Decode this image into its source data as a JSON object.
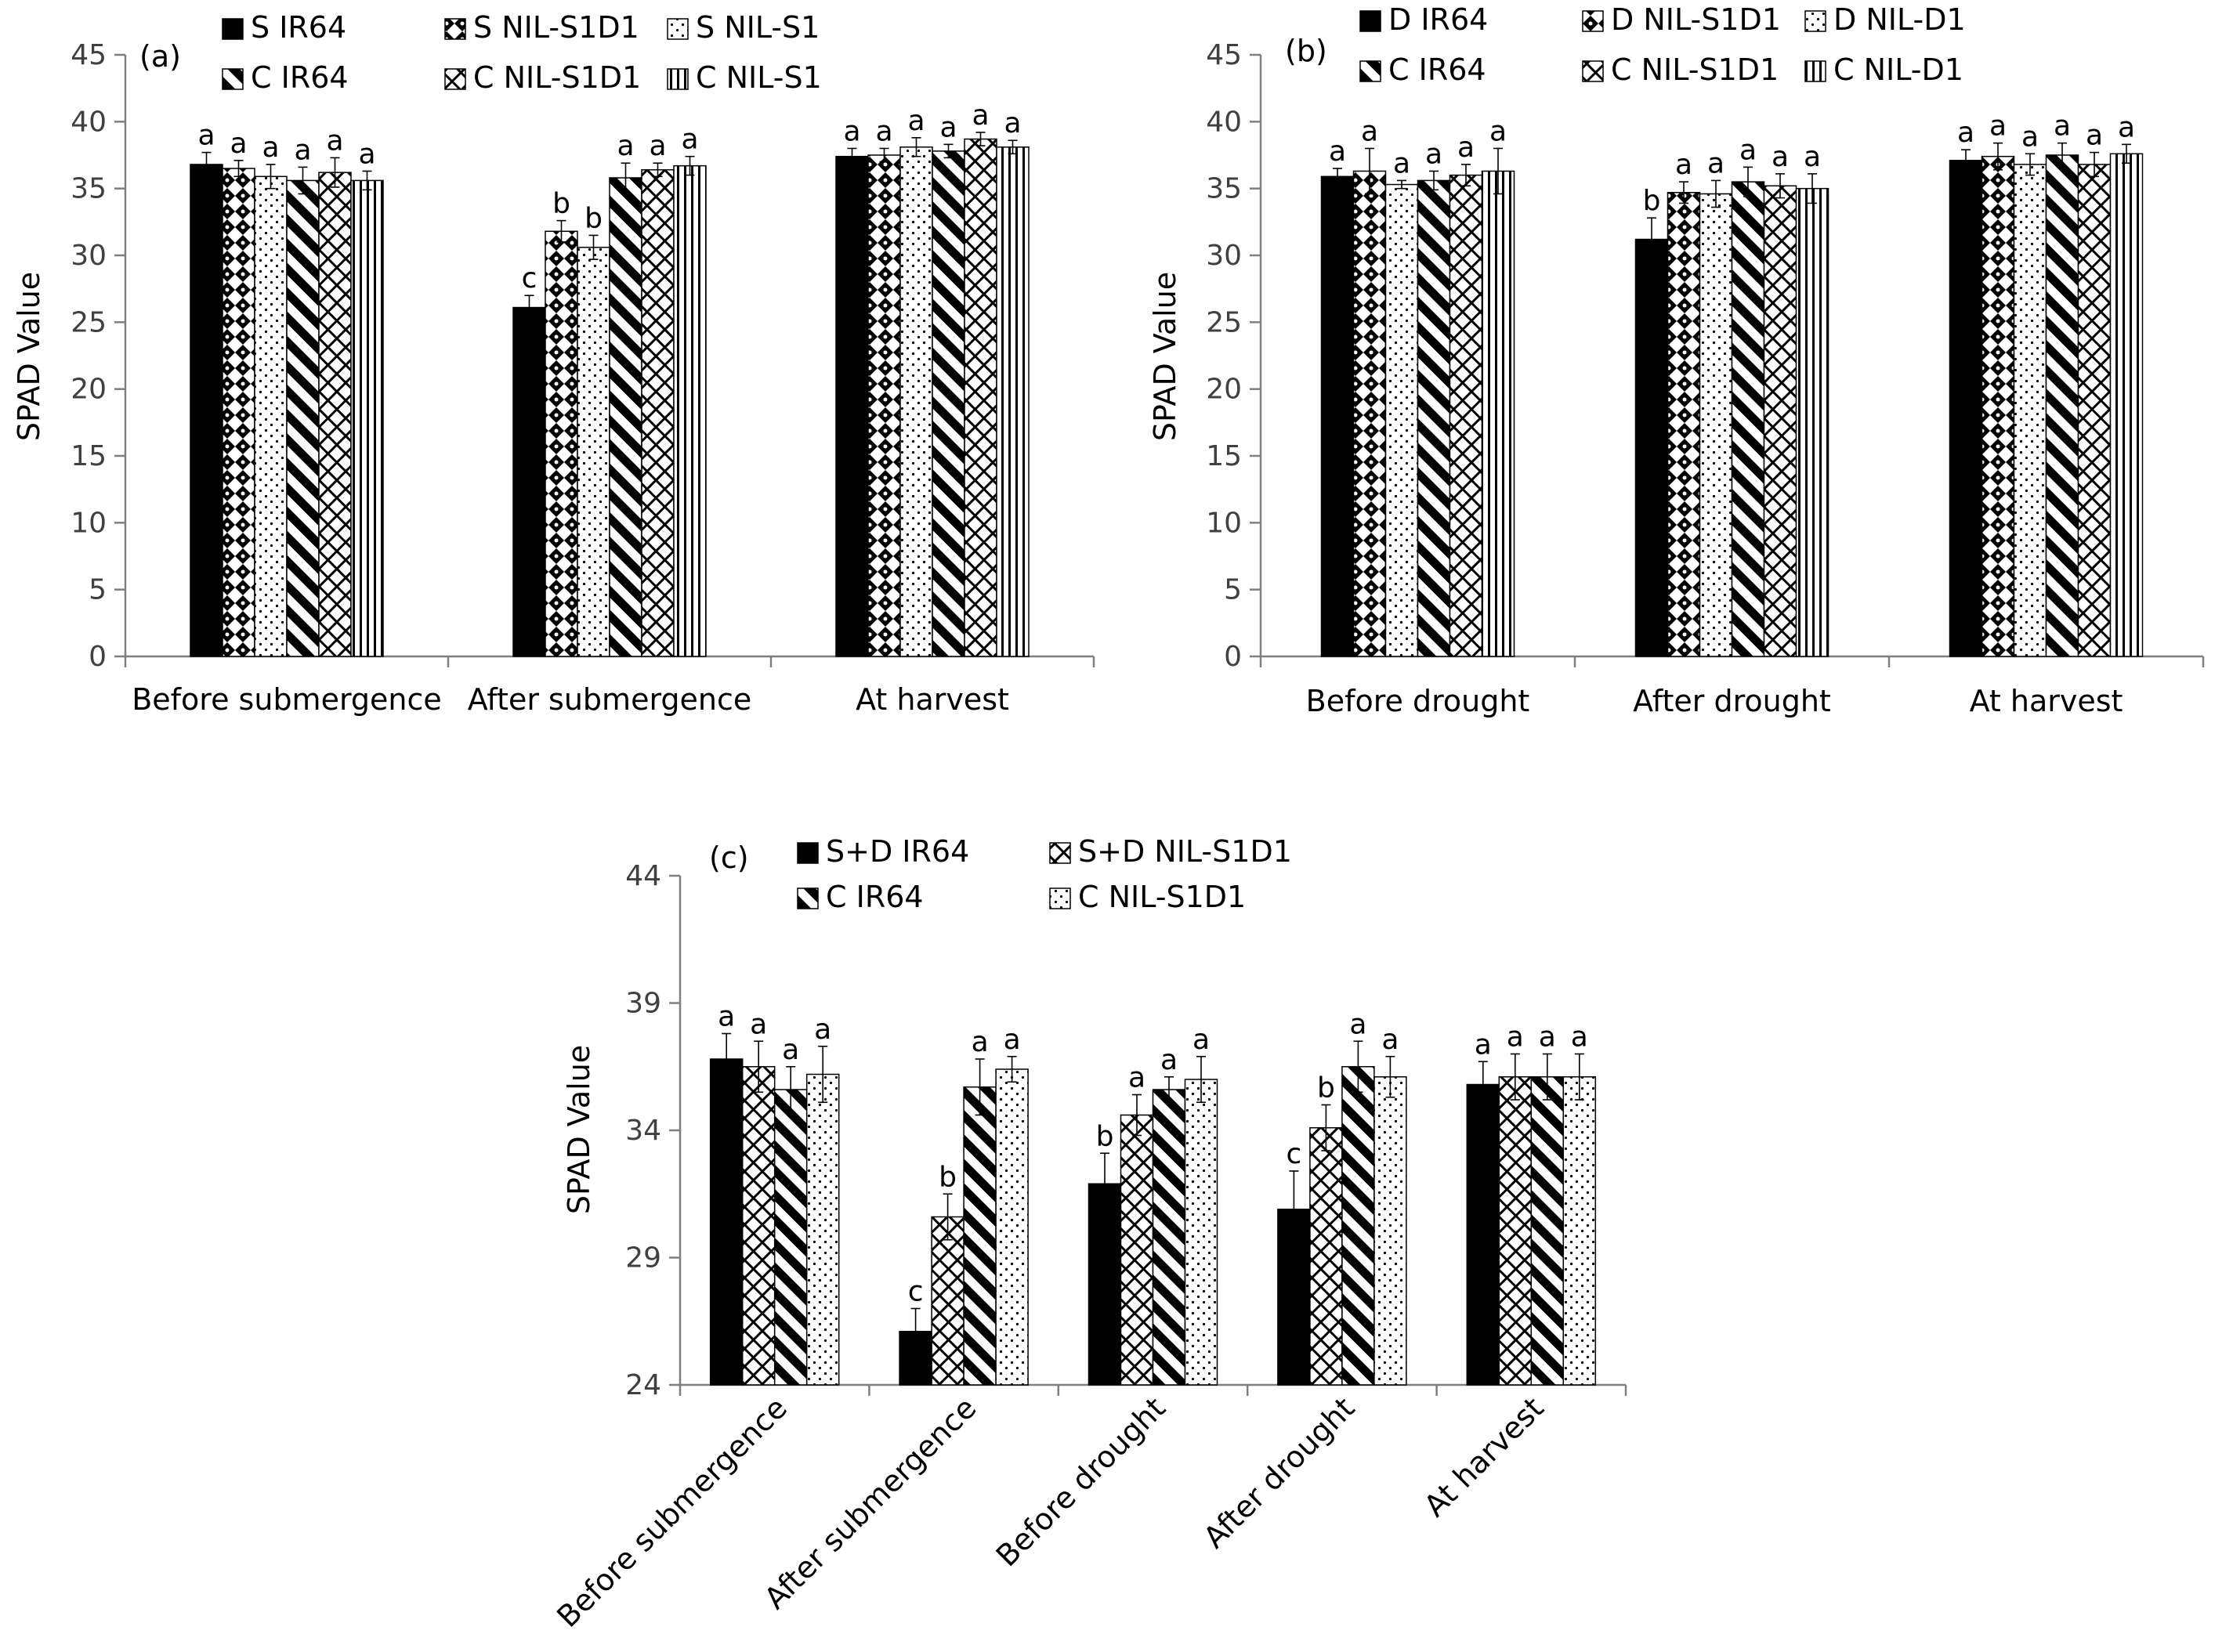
{
  "colors": {
    "axis": "#7f7f7f",
    "bar_edge": "#000000",
    "pattern_fill": "#000000",
    "background": "#ffffff"
  },
  "chart_data": [
    {
      "panel": "(a)",
      "type": "bar",
      "ylabel": "SPAD Value",
      "ylim": [
        0,
        45
      ],
      "yticks": [
        0,
        5,
        10,
        15,
        20,
        25,
        30,
        35,
        40,
        45
      ],
      "categories": [
        "Before submergence",
        "After submergence",
        "At harvest"
      ],
      "series": [
        {
          "name": "S IR64",
          "pattern": "solid",
          "values": [
            36.8,
            26.1,
            37.4
          ],
          "errors": [
            0.9,
            0.9,
            0.6
          ],
          "labels": [
            "a",
            "c",
            "a"
          ]
        },
        {
          "name": "S NIL-S1D1",
          "pattern": "checker",
          "values": [
            36.5,
            31.8,
            37.5
          ],
          "errors": [
            0.6,
            0.8,
            0.5
          ],
          "labels": [
            "a",
            "b",
            "a"
          ]
        },
        {
          "name": "S NIL-S1",
          "pattern": "dots",
          "values": [
            35.9,
            30.6,
            38.1
          ],
          "errors": [
            0.9,
            0.9,
            0.7
          ],
          "labels": [
            "a",
            "b",
            "a"
          ]
        },
        {
          "name": "C IR64",
          "pattern": "wide-diag",
          "values": [
            35.6,
            35.8,
            37.8
          ],
          "errors": [
            1.0,
            1.1,
            0.5
          ],
          "labels": [
            "a",
            "a",
            "a"
          ]
        },
        {
          "name": "C NIL-S1D1",
          "pattern": "diag-cross",
          "values": [
            36.2,
            36.4,
            38.7
          ],
          "errors": [
            1.1,
            0.5,
            0.5
          ],
          "labels": [
            "a",
            "a",
            "a"
          ]
        },
        {
          "name": "C NIL-S1",
          "pattern": "vertical",
          "values": [
            35.6,
            36.7,
            38.1
          ],
          "errors": [
            0.7,
            0.7,
            0.5
          ],
          "labels": [
            "a",
            "a",
            "a"
          ]
        }
      ]
    },
    {
      "panel": "(b)",
      "type": "bar",
      "ylabel": "SPAD Value",
      "ylim": [
        0,
        45
      ],
      "yticks": [
        0,
        5,
        10,
        15,
        20,
        25,
        30,
        35,
        40,
        45
      ],
      "categories": [
        "Before drought",
        "After drought",
        "At harvest"
      ],
      "series": [
        {
          "name": "D IR64",
          "pattern": "solid",
          "values": [
            35.9,
            31.2,
            37.1
          ],
          "errors": [
            0.6,
            1.6,
            0.8
          ],
          "labels": [
            "a",
            "b",
            "a"
          ]
        },
        {
          "name": "D NIL-S1D1",
          "pattern": "checker",
          "values": [
            36.3,
            34.7,
            37.4
          ],
          "errors": [
            1.7,
            0.8,
            1.0
          ],
          "labels": [
            "a",
            "a",
            "a"
          ]
        },
        {
          "name": "D NIL-D1",
          "pattern": "dots",
          "values": [
            35.3,
            34.6,
            36.8
          ],
          "errors": [
            0.3,
            1.0,
            0.8
          ],
          "labels": [
            "a",
            "a",
            "a"
          ]
        },
        {
          "name": "C IR64",
          "pattern": "wide-diag",
          "values": [
            35.6,
            35.5,
            37.5
          ],
          "errors": [
            0.7,
            1.1,
            0.9
          ],
          "labels": [
            "a",
            "a",
            "a"
          ]
        },
        {
          "name": "C NIL-S1D1",
          "pattern": "diag-cross",
          "values": [
            36.0,
            35.2,
            36.8
          ],
          "errors": [
            0.8,
            0.9,
            0.9
          ],
          "labels": [
            "a",
            "a",
            "a"
          ]
        },
        {
          "name": "C NIL-D1",
          "pattern": "vertical",
          "values": [
            36.3,
            35.0,
            37.6
          ],
          "errors": [
            1.7,
            1.1,
            0.7
          ],
          "labels": [
            "a",
            "a",
            "a"
          ]
        }
      ]
    },
    {
      "panel": "(c)",
      "type": "bar",
      "ylabel": "SPAD Value",
      "ylim": [
        24,
        44
      ],
      "yticks": [
        24,
        29,
        34,
        39,
        44
      ],
      "categories": [
        "Before submergence",
        "After submergence",
        "Before drought",
        "After drought",
        "At harvest"
      ],
      "series": [
        {
          "name": "S+D IR64",
          "pattern": "solid",
          "values": [
            36.8,
            26.1,
            31.9,
            30.9,
            35.8
          ],
          "errors": [
            1.0,
            0.9,
            1.2,
            1.5,
            0.9
          ],
          "labels": [
            "a",
            "c",
            "b",
            "c",
            "a"
          ]
        },
        {
          "name": "S+D NIL-S1D1",
          "pattern": "diag-cross",
          "values": [
            36.5,
            30.6,
            34.6,
            34.1,
            36.1
          ],
          "errors": [
            1.0,
            0.9,
            0.8,
            0.9,
            0.9
          ],
          "labels": [
            "a",
            "b",
            "a",
            "b",
            "a"
          ]
        },
        {
          "name": "C IR64",
          "pattern": "wide-diag",
          "values": [
            35.6,
            35.7,
            35.6,
            36.5,
            36.1
          ],
          "errors": [
            0.9,
            1.1,
            0.5,
            1.0,
            0.9
          ],
          "labels": [
            "a",
            "a",
            "a",
            "a",
            "a"
          ]
        },
        {
          "name": "C NIL-S1D1",
          "pattern": "dots",
          "values": [
            36.2,
            36.4,
            36.0,
            36.1,
            36.1
          ],
          "errors": [
            1.1,
            0.5,
            0.9,
            0.8,
            0.9
          ],
          "labels": [
            "a",
            "a",
            "a",
            "a",
            "a"
          ]
        }
      ]
    }
  ]
}
